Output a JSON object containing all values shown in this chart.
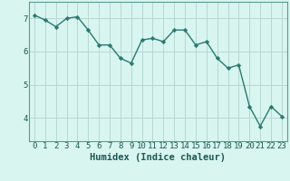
{
  "x": [
    0,
    1,
    2,
    3,
    4,
    5,
    6,
    7,
    8,
    9,
    10,
    11,
    12,
    13,
    14,
    15,
    16,
    17,
    18,
    19,
    20,
    21,
    22,
    23
  ],
  "y": [
    7.1,
    6.95,
    6.75,
    7.0,
    7.05,
    6.65,
    6.2,
    6.2,
    5.8,
    5.65,
    6.35,
    6.4,
    6.3,
    6.65,
    6.65,
    6.2,
    6.3,
    5.8,
    5.5,
    5.6,
    4.35,
    3.75,
    4.35,
    4.05
  ],
  "line_color": "#2a7a6f",
  "marker": "D",
  "marker_size": 2.2,
  "line_width": 1.0,
  "bg_color": "#d8f5f0",
  "grid_color": "#b8d8d4",
  "xlabel": "Humidex (Indice chaleur)",
  "xlim": [
    -0.5,
    23.5
  ],
  "ylim": [
    3.3,
    7.5
  ],
  "yticks": [
    4,
    5,
    6,
    7
  ],
  "xticks": [
    0,
    1,
    2,
    3,
    4,
    5,
    6,
    7,
    8,
    9,
    10,
    11,
    12,
    13,
    14,
    15,
    16,
    17,
    18,
    19,
    20,
    21,
    22,
    23
  ],
  "xlabel_fontsize": 7.5,
  "tick_fontsize": 6.5
}
